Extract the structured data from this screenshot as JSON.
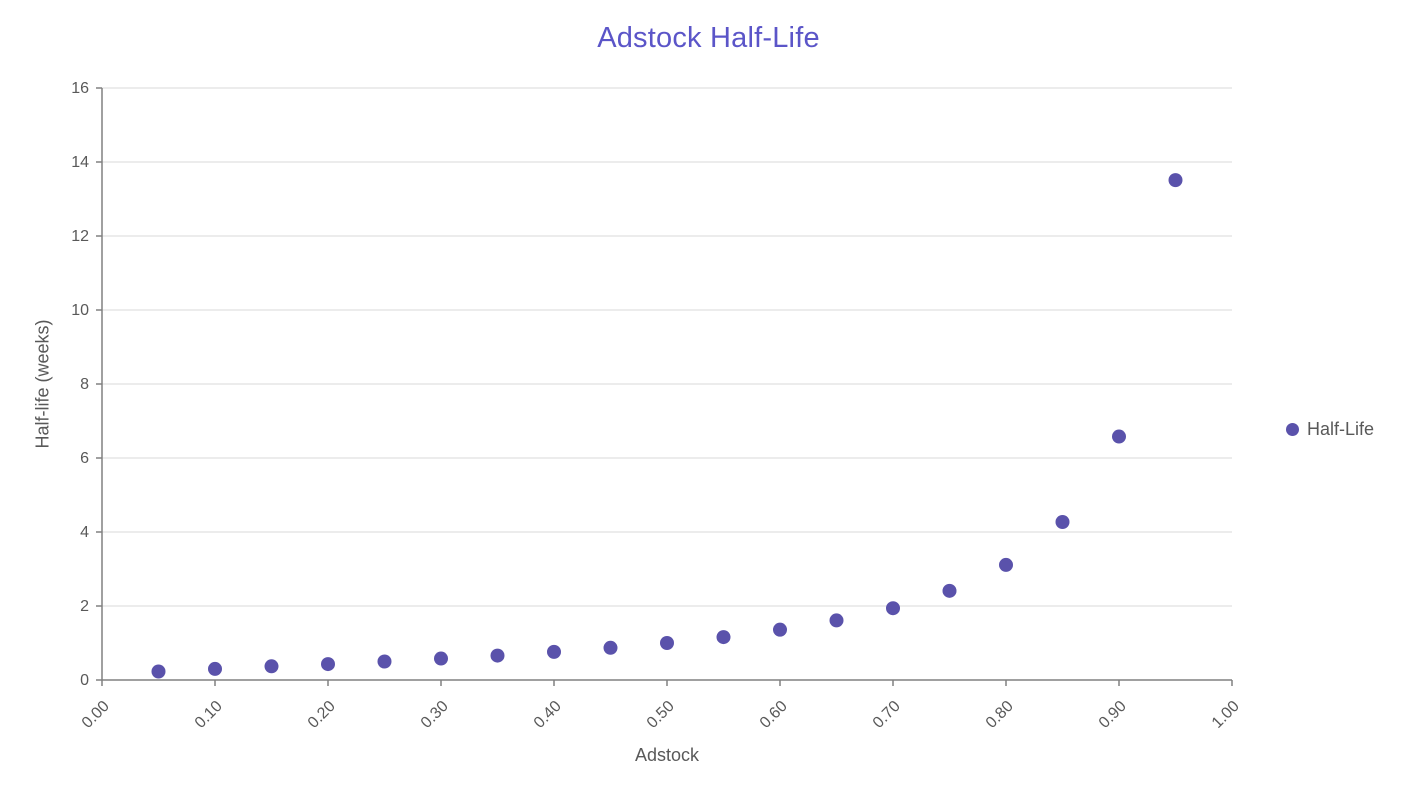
{
  "chart_data": {
    "type": "scatter",
    "title": "Adstock Half-Life",
    "xlabel": "Adstock",
    "ylabel": "Half-life (weeks)",
    "legend_position": "right",
    "grid": true,
    "xlim": [
      0,
      1
    ],
    "ylim": [
      0,
      16
    ],
    "x_ticks": [
      0,
      0.1,
      0.2,
      0.3,
      0.4,
      0.5,
      0.6,
      0.7,
      0.8,
      0.9,
      1.0
    ],
    "x_tick_labels": [
      "0.00",
      "0.10",
      "0.20",
      "0.30",
      "0.40",
      "0.50",
      "0.60",
      "0.70",
      "0.80",
      "0.90",
      "1.00"
    ],
    "y_ticks": [
      0,
      2,
      4,
      6,
      8,
      10,
      12,
      14,
      16
    ],
    "y_tick_labels": [
      "0",
      "2",
      "4",
      "6",
      "8",
      "10",
      "12",
      "14",
      "16"
    ],
    "x": [
      0.05,
      0.1,
      0.15,
      0.2,
      0.25,
      0.3,
      0.35,
      0.4,
      0.45,
      0.5,
      0.55,
      0.6,
      0.65,
      0.7,
      0.75,
      0.8,
      0.85,
      0.9,
      0.95
    ],
    "series": [
      {
        "name": "Half-Life",
        "values": [
          0.23,
          0.3,
          0.37,
          0.43,
          0.5,
          0.58,
          0.66,
          0.76,
          0.87,
          1.0,
          1.16,
          1.36,
          1.61,
          1.94,
          2.41,
          3.11,
          4.27,
          6.58,
          13.51
        ]
      }
    ]
  },
  "colors": {
    "title": "#5B55C8",
    "point": "#5A52AB",
    "grid": "#D9D9D9",
    "axis": "#808080",
    "tick_text": "#595959",
    "axis_title_text": "#595959",
    "legend_text": "#595959",
    "background": "#FFFFFF"
  }
}
